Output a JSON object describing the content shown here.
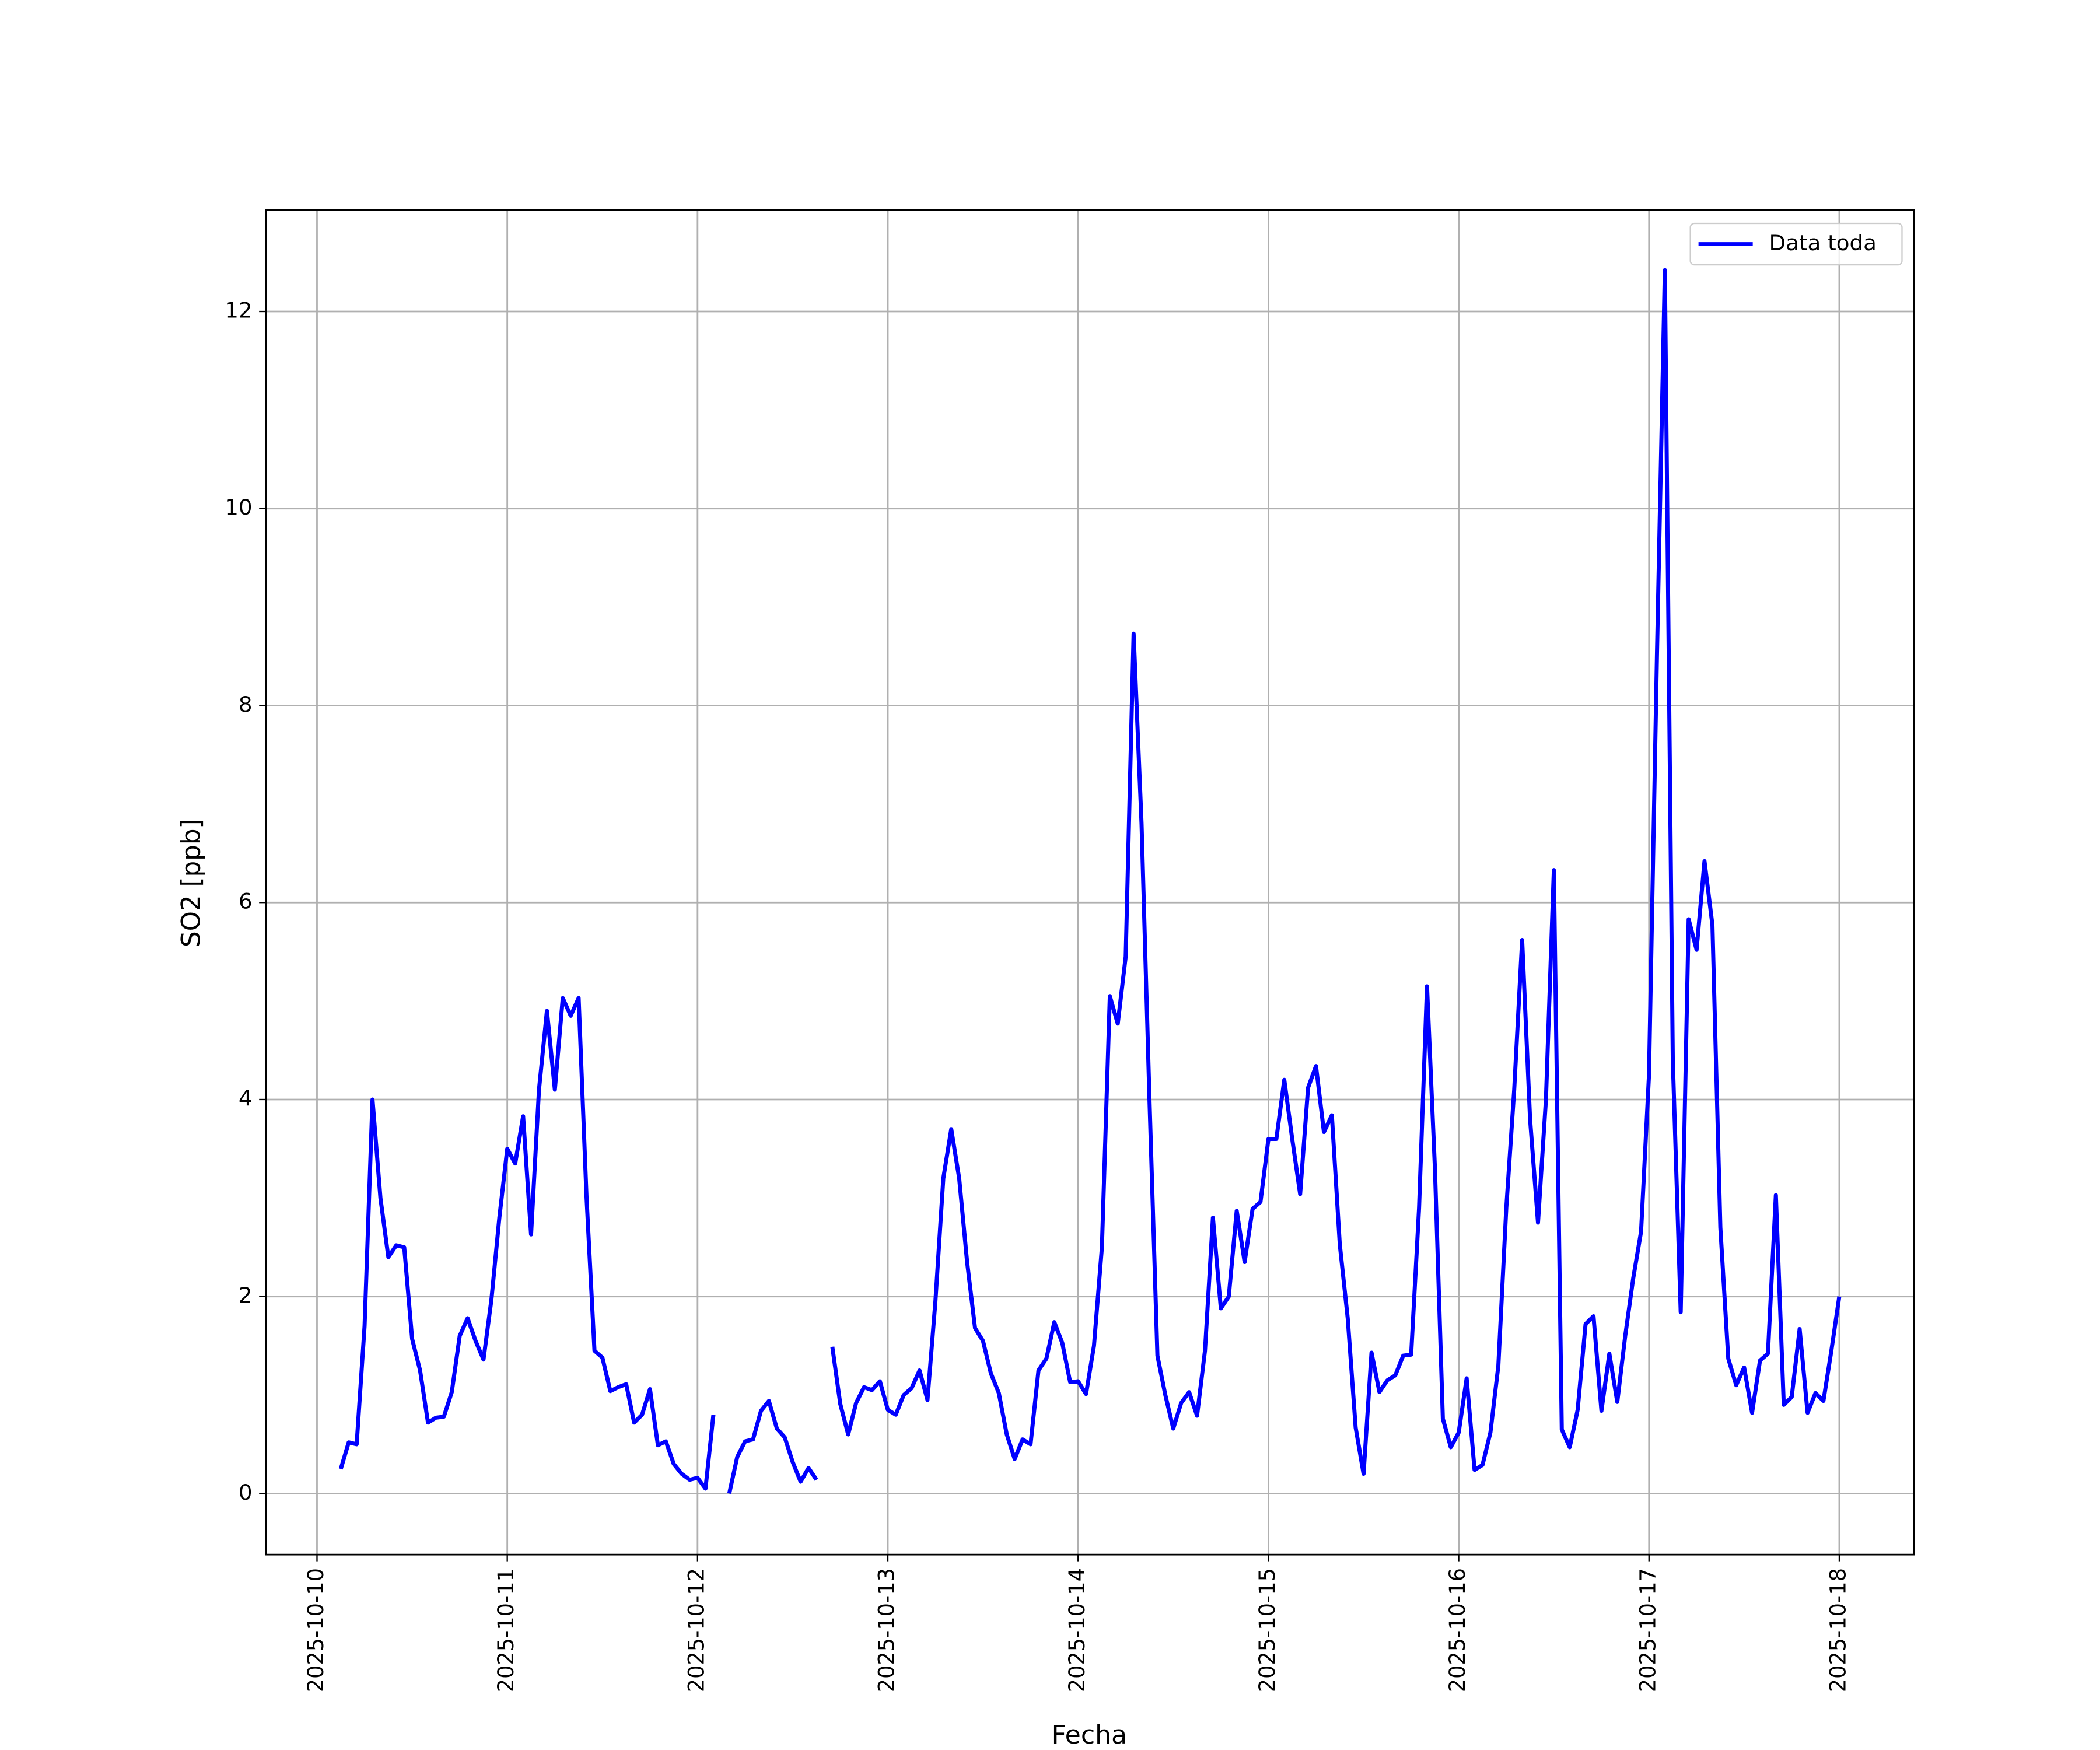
{
  "chart_data": {
    "type": "line",
    "ylabel": "SO2 [ppb]",
    "xlabel": "Fecha",
    "x": [
      "2025-10-10 03:00",
      "2025-10-10 04:00",
      "2025-10-10 05:00",
      "2025-10-10 06:00",
      "2025-10-10 07:00",
      "2025-10-10 08:00",
      "2025-10-10 09:00",
      "2025-10-10 10:00",
      "2025-10-10 11:00",
      "2025-10-10 12:00",
      "2025-10-10 13:00",
      "2025-10-10 14:00",
      "2025-10-10 15:00",
      "2025-10-10 16:00",
      "2025-10-10 17:00",
      "2025-10-10 18:00",
      "2025-10-10 19:00",
      "2025-10-10 20:00",
      "2025-10-10 21:00",
      "2025-10-10 22:00",
      "2025-10-10 23:00",
      "2025-10-11 00:00",
      "2025-10-11 01:00",
      "2025-10-11 02:00",
      "2025-10-11 03:00",
      "2025-10-11 04:00",
      "2025-10-11 05:00",
      "2025-10-11 06:00",
      "2025-10-11 07:00",
      "2025-10-11 08:00",
      "2025-10-11 09:00",
      "2025-10-11 10:00",
      "2025-10-11 11:00",
      "2025-10-11 12:00",
      "2025-10-11 13:00",
      "2025-10-11 14:00",
      "2025-10-11 15:00",
      "2025-10-11 16:00",
      "2025-10-11 17:00",
      "2025-10-11 18:00",
      "2025-10-11 19:00",
      "2025-10-11 20:00",
      "2025-10-11 21:00",
      "2025-10-11 22:00",
      "2025-10-11 23:00",
      "2025-10-12 00:00",
      "2025-10-12 01:00",
      "2025-10-12 02:00",
      "2025-10-12 03:00",
      "2025-10-12 04:00",
      "2025-10-12 05:00",
      "2025-10-12 06:00",
      "2025-10-12 07:00",
      "2025-10-12 08:00",
      "2025-10-12 09:00",
      "2025-10-12 10:00",
      "2025-10-12 11:00",
      "2025-10-12 12:00",
      "2025-10-12 13:00",
      "2025-10-12 14:00",
      "2025-10-12 15:00",
      "2025-10-12 16:00",
      "2025-10-12 17:00",
      "2025-10-12 18:00",
      "2025-10-12 19:00",
      "2025-10-12 20:00",
      "2025-10-12 21:00",
      "2025-10-12 22:00",
      "2025-10-12 23:00",
      "2025-10-13 00:00",
      "2025-10-13 01:00",
      "2025-10-13 02:00",
      "2025-10-13 03:00",
      "2025-10-13 04:00",
      "2025-10-13 05:00",
      "2025-10-13 06:00",
      "2025-10-13 07:00",
      "2025-10-13 08:00",
      "2025-10-13 09:00",
      "2025-10-13 10:00",
      "2025-10-13 11:00",
      "2025-10-13 12:00",
      "2025-10-13 13:00",
      "2025-10-13 14:00",
      "2025-10-13 15:00",
      "2025-10-13 16:00",
      "2025-10-13 17:00",
      "2025-10-13 18:00",
      "2025-10-13 19:00",
      "2025-10-13 20:00",
      "2025-10-13 21:00",
      "2025-10-13 22:00",
      "2025-10-13 23:00",
      "2025-10-14 00:00",
      "2025-10-14 01:00",
      "2025-10-14 02:00",
      "2025-10-14 03:00",
      "2025-10-14 04:00",
      "2025-10-14 05:00",
      "2025-10-14 06:00",
      "2025-10-14 07:00",
      "2025-10-14 08:00",
      "2025-10-14 09:00",
      "2025-10-14 10:00",
      "2025-10-14 11:00",
      "2025-10-14 12:00",
      "2025-10-14 13:00",
      "2025-10-14 14:00",
      "2025-10-14 15:00",
      "2025-10-14 16:00",
      "2025-10-14 17:00",
      "2025-10-14 18:00",
      "2025-10-14 19:00",
      "2025-10-14 20:00",
      "2025-10-14 21:00",
      "2025-10-14 22:00",
      "2025-10-14 23:00",
      "2025-10-15 00:00",
      "2025-10-15 01:00",
      "2025-10-15 02:00",
      "2025-10-15 03:00",
      "2025-10-15 04:00",
      "2025-10-15 05:00",
      "2025-10-15 06:00",
      "2025-10-15 07:00",
      "2025-10-15 08:00",
      "2025-10-15 09:00",
      "2025-10-15 10:00",
      "2025-10-15 11:00",
      "2025-10-15 12:00",
      "2025-10-15 13:00",
      "2025-10-15 14:00",
      "2025-10-15 15:00",
      "2025-10-15 16:00",
      "2025-10-15 17:00",
      "2025-10-15 18:00",
      "2025-10-15 19:00",
      "2025-10-15 20:00",
      "2025-10-15 21:00",
      "2025-10-15 22:00",
      "2025-10-15 23:00",
      "2025-10-16 00:00",
      "2025-10-16 01:00",
      "2025-10-16 02:00",
      "2025-10-16 03:00",
      "2025-10-16 04:00",
      "2025-10-16 05:00",
      "2025-10-16 06:00",
      "2025-10-16 07:00",
      "2025-10-16 08:00",
      "2025-10-16 09:00",
      "2025-10-16 10:00",
      "2025-10-16 11:00",
      "2025-10-16 12:00",
      "2025-10-16 13:00",
      "2025-10-16 14:00",
      "2025-10-16 15:00",
      "2025-10-16 16:00",
      "2025-10-16 17:00",
      "2025-10-16 18:00",
      "2025-10-16 19:00",
      "2025-10-16 20:00",
      "2025-10-16 21:00",
      "2025-10-16 22:00",
      "2025-10-16 23:00",
      "2025-10-17 00:00",
      "2025-10-17 01:00",
      "2025-10-17 02:00",
      "2025-10-17 03:00",
      "2025-10-17 04:00",
      "2025-10-17 05:00",
      "2025-10-17 06:00",
      "2025-10-17 07:00",
      "2025-10-17 08:00",
      "2025-10-17 09:00",
      "2025-10-17 10:00",
      "2025-10-17 11:00",
      "2025-10-17 12:00",
      "2025-10-17 13:00",
      "2025-10-17 14:00",
      "2025-10-17 15:00",
      "2025-10-17 16:00",
      "2025-10-17 17:00",
      "2025-10-17 18:00",
      "2025-10-17 19:00",
      "2025-10-17 20:00",
      "2025-10-17 21:00",
      "2025-10-17 22:00",
      "2025-10-17 23:00",
      "2025-10-18 00:00"
    ],
    "series": [
      {
        "name": "Data toda",
        "color": "#0000ff",
        "values": [
          0.25,
          0.52,
          0.5,
          1.7,
          4.0,
          3.0,
          2.4,
          2.52,
          2.5,
          1.57,
          1.25,
          0.72,
          0.77,
          0.78,
          1.03,
          1.6,
          1.78,
          1.55,
          1.36,
          1.97,
          2.8,
          3.5,
          3.35,
          3.83,
          2.63,
          4.1,
          4.9,
          4.1,
          5.03,
          4.85,
          5.03,
          3.0,
          1.45,
          1.38,
          1.04,
          1.08,
          1.11,
          0.72,
          0.8,
          1.06,
          0.49,
          0.53,
          0.3,
          0.2,
          0.14,
          0.16,
          0.05,
          0.8,
          null,
          0.0,
          0.37,
          0.53,
          0.55,
          0.84,
          0.94,
          0.66,
          0.57,
          0.32,
          0.12,
          0.26,
          0.14,
          null,
          1.49,
          0.91,
          0.6,
          0.92,
          1.08,
          1.05,
          1.14,
          0.85,
          0.8,
          1.0,
          1.07,
          1.25,
          0.95,
          1.95,
          3.2,
          3.7,
          3.2,
          2.35,
          1.68,
          1.55,
          1.22,
          1.02,
          0.6,
          0.35,
          0.55,
          0.5,
          1.25,
          1.37,
          1.74,
          1.53,
          1.13,
          1.14,
          1.01,
          1.5,
          2.5,
          5.05,
          4.77,
          5.45,
          8.73,
          6.8,
          4.0,
          1.4,
          1.0,
          0.66,
          0.92,
          1.03,
          0.79,
          1.45,
          2.8,
          1.88,
          2.0,
          2.87,
          2.35,
          2.89,
          2.96,
          3.6,
          3.6,
          4.2,
          3.6,
          3.04,
          4.12,
          4.34,
          3.67,
          3.84,
          2.53,
          1.78,
          0.67,
          0.2,
          1.43,
          1.03,
          1.15,
          1.2,
          1.4,
          1.41,
          2.9,
          5.15,
          3.3,
          0.76,
          0.47,
          0.62,
          1.17,
          0.24,
          0.29,
          0.62,
          1.3,
          2.9,
          4.1,
          5.62,
          3.8,
          2.75,
          4.0,
          6.33,
          0.65,
          0.47,
          0.85,
          1.72,
          1.8,
          0.84,
          1.42,
          0.93,
          1.6,
          2.18,
          2.66,
          4.25,
          8.5,
          12.42,
          4.4,
          1.84,
          5.83,
          5.52,
          6.42,
          5.77,
          2.7,
          1.37,
          1.1,
          1.28,
          0.82,
          1.35,
          1.42,
          3.03,
          0.9,
          0.98,
          1.67,
          0.82,
          1.02,
          0.94,
          1.45,
          2.0
        ]
      }
    ],
    "xticks": [
      "2025-10-10",
      "2025-10-11",
      "2025-10-12",
      "2025-10-13",
      "2025-10-14",
      "2025-10-15",
      "2025-10-16",
      "2025-10-17",
      "2025-10-18"
    ],
    "ylim": [
      -0.62,
      13.03
    ],
    "yticks": [
      0,
      2,
      4,
      6,
      8,
      10,
      12
    ],
    "grid": true,
    "legend": "upper right"
  }
}
